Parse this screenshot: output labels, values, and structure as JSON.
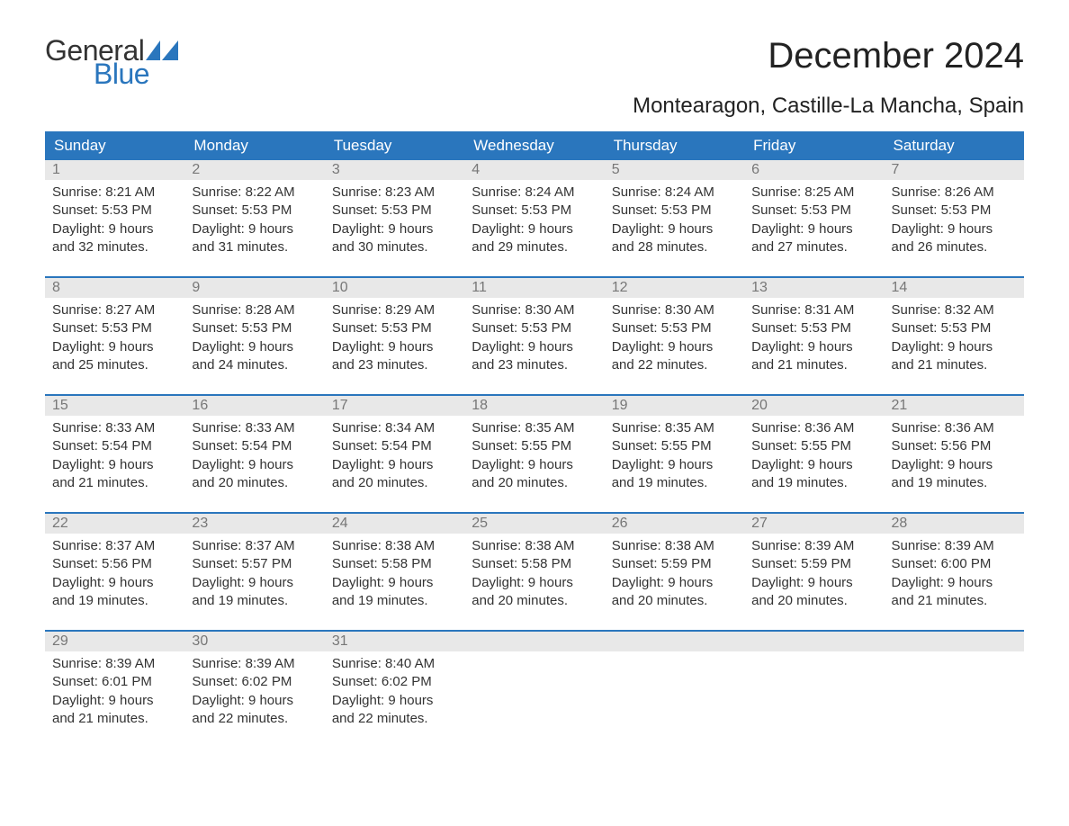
{
  "logo": {
    "word1": "General",
    "word2": "Blue",
    "word1_color": "#333333",
    "word2_color": "#2a76bd",
    "flag_color": "#2a76bd"
  },
  "title": "December 2024",
  "location": "Montearagon, Castille-La Mancha, Spain",
  "colors": {
    "header_bg": "#2a76bd",
    "header_text": "#ffffff",
    "daynum_bg": "#e8e8e8",
    "daynum_text": "#777777",
    "body_text": "#333333",
    "rule": "#2a76bd",
    "page_bg": "#ffffff"
  },
  "font": {
    "family": "Arial",
    "title_size": 40,
    "location_size": 24,
    "header_size": 17,
    "body_size": 15
  },
  "day_labels": [
    "Sunday",
    "Monday",
    "Tuesday",
    "Wednesday",
    "Thursday",
    "Friday",
    "Saturday"
  ],
  "weeks": [
    [
      {
        "n": "1",
        "sunrise": "8:21 AM",
        "sunset": "5:53 PM",
        "dl1": "Daylight: 9 hours",
        "dl2": "and 32 minutes."
      },
      {
        "n": "2",
        "sunrise": "8:22 AM",
        "sunset": "5:53 PM",
        "dl1": "Daylight: 9 hours",
        "dl2": "and 31 minutes."
      },
      {
        "n": "3",
        "sunrise": "8:23 AM",
        "sunset": "5:53 PM",
        "dl1": "Daylight: 9 hours",
        "dl2": "and 30 minutes."
      },
      {
        "n": "4",
        "sunrise": "8:24 AM",
        "sunset": "5:53 PM",
        "dl1": "Daylight: 9 hours",
        "dl2": "and 29 minutes."
      },
      {
        "n": "5",
        "sunrise": "8:24 AM",
        "sunset": "5:53 PM",
        "dl1": "Daylight: 9 hours",
        "dl2": "and 28 minutes."
      },
      {
        "n": "6",
        "sunrise": "8:25 AM",
        "sunset": "5:53 PM",
        "dl1": "Daylight: 9 hours",
        "dl2": "and 27 minutes."
      },
      {
        "n": "7",
        "sunrise": "8:26 AM",
        "sunset": "5:53 PM",
        "dl1": "Daylight: 9 hours",
        "dl2": "and 26 minutes."
      }
    ],
    [
      {
        "n": "8",
        "sunrise": "8:27 AM",
        "sunset": "5:53 PM",
        "dl1": "Daylight: 9 hours",
        "dl2": "and 25 minutes."
      },
      {
        "n": "9",
        "sunrise": "8:28 AM",
        "sunset": "5:53 PM",
        "dl1": "Daylight: 9 hours",
        "dl2": "and 24 minutes."
      },
      {
        "n": "10",
        "sunrise": "8:29 AM",
        "sunset": "5:53 PM",
        "dl1": "Daylight: 9 hours",
        "dl2": "and 23 minutes."
      },
      {
        "n": "11",
        "sunrise": "8:30 AM",
        "sunset": "5:53 PM",
        "dl1": "Daylight: 9 hours",
        "dl2": "and 23 minutes."
      },
      {
        "n": "12",
        "sunrise": "8:30 AM",
        "sunset": "5:53 PM",
        "dl1": "Daylight: 9 hours",
        "dl2": "and 22 minutes."
      },
      {
        "n": "13",
        "sunrise": "8:31 AM",
        "sunset": "5:53 PM",
        "dl1": "Daylight: 9 hours",
        "dl2": "and 21 minutes."
      },
      {
        "n": "14",
        "sunrise": "8:32 AM",
        "sunset": "5:53 PM",
        "dl1": "Daylight: 9 hours",
        "dl2": "and 21 minutes."
      }
    ],
    [
      {
        "n": "15",
        "sunrise": "8:33 AM",
        "sunset": "5:54 PM",
        "dl1": "Daylight: 9 hours",
        "dl2": "and 21 minutes."
      },
      {
        "n": "16",
        "sunrise": "8:33 AM",
        "sunset": "5:54 PM",
        "dl1": "Daylight: 9 hours",
        "dl2": "and 20 minutes."
      },
      {
        "n": "17",
        "sunrise": "8:34 AM",
        "sunset": "5:54 PM",
        "dl1": "Daylight: 9 hours",
        "dl2": "and 20 minutes."
      },
      {
        "n": "18",
        "sunrise": "8:35 AM",
        "sunset": "5:55 PM",
        "dl1": "Daylight: 9 hours",
        "dl2": "and 20 minutes."
      },
      {
        "n": "19",
        "sunrise": "8:35 AM",
        "sunset": "5:55 PM",
        "dl1": "Daylight: 9 hours",
        "dl2": "and 19 minutes."
      },
      {
        "n": "20",
        "sunrise": "8:36 AM",
        "sunset": "5:55 PM",
        "dl1": "Daylight: 9 hours",
        "dl2": "and 19 minutes."
      },
      {
        "n": "21",
        "sunrise": "8:36 AM",
        "sunset": "5:56 PM",
        "dl1": "Daylight: 9 hours",
        "dl2": "and 19 minutes."
      }
    ],
    [
      {
        "n": "22",
        "sunrise": "8:37 AM",
        "sunset": "5:56 PM",
        "dl1": "Daylight: 9 hours",
        "dl2": "and 19 minutes."
      },
      {
        "n": "23",
        "sunrise": "8:37 AM",
        "sunset": "5:57 PM",
        "dl1": "Daylight: 9 hours",
        "dl2": "and 19 minutes."
      },
      {
        "n": "24",
        "sunrise": "8:38 AM",
        "sunset": "5:58 PM",
        "dl1": "Daylight: 9 hours",
        "dl2": "and 19 minutes."
      },
      {
        "n": "25",
        "sunrise": "8:38 AM",
        "sunset": "5:58 PM",
        "dl1": "Daylight: 9 hours",
        "dl2": "and 20 minutes."
      },
      {
        "n": "26",
        "sunrise": "8:38 AM",
        "sunset": "5:59 PM",
        "dl1": "Daylight: 9 hours",
        "dl2": "and 20 minutes."
      },
      {
        "n": "27",
        "sunrise": "8:39 AM",
        "sunset": "5:59 PM",
        "dl1": "Daylight: 9 hours",
        "dl2": "and 20 minutes."
      },
      {
        "n": "28",
        "sunrise": "8:39 AM",
        "sunset": "6:00 PM",
        "dl1": "Daylight: 9 hours",
        "dl2": "and 21 minutes."
      }
    ],
    [
      {
        "n": "29",
        "sunrise": "8:39 AM",
        "sunset": "6:01 PM",
        "dl1": "Daylight: 9 hours",
        "dl2": "and 21 minutes."
      },
      {
        "n": "30",
        "sunrise": "8:39 AM",
        "sunset": "6:02 PM",
        "dl1": "Daylight: 9 hours",
        "dl2": "and 22 minutes."
      },
      {
        "n": "31",
        "sunrise": "8:40 AM",
        "sunset": "6:02 PM",
        "dl1": "Daylight: 9 hours",
        "dl2": "and 22 minutes."
      },
      {
        "empty": true
      },
      {
        "empty": true
      },
      {
        "empty": true
      },
      {
        "empty": true
      }
    ]
  ],
  "labels": {
    "sunrise_prefix": "Sunrise: ",
    "sunset_prefix": "Sunset: "
  }
}
